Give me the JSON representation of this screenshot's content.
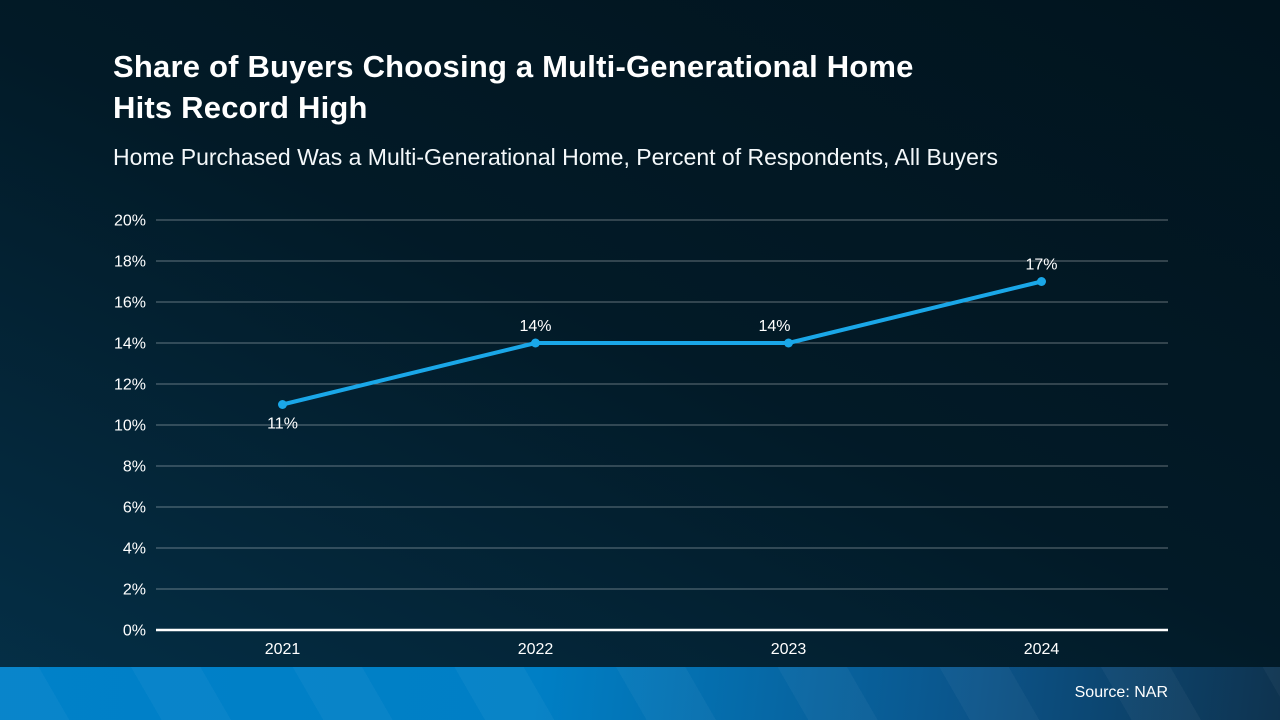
{
  "header": {
    "title_line1": "Share of Buyers Choosing a Multi-Generational Home",
    "title_line2": "Hits Record High",
    "subtitle": "Home Purchased Was a Multi-Generational Home, Percent of Respondents, All Buyers"
  },
  "footer": {
    "source": "Source: NAR"
  },
  "colors": {
    "accent_line": "#1aa7e8",
    "background_dark": "#01141e",
    "background_light": "#053048",
    "footer_gradient_left": "#0081c9",
    "footer_gradient_right": "#0e334f",
    "gridline": "rgba(255,255,255,0.38)",
    "axis_line": "#ffffff",
    "text": "#ffffff"
  },
  "chart_data": {
    "type": "line",
    "title": "Share of Buyers Choosing a Multi-Generational Home Hits Record High",
    "subtitle": "Home Purchased Was a Multi-Generational Home, Percent of Respondents, All Buyers",
    "categories": [
      "2021",
      "2022",
      "2023",
      "2024"
    ],
    "series": [
      {
        "name": "Home Purchased Was a Multi-Generational Home",
        "values": [
          11,
          14,
          14,
          17
        ],
        "data_labels": [
          "11%",
          "14%",
          "14%",
          "17%"
        ],
        "label_positions": [
          "below",
          "above",
          "above",
          "above"
        ],
        "label_x_offsets": [
          0,
          0,
          -14,
          0
        ]
      }
    ],
    "xlabel": "",
    "ylabel": "",
    "ylim": [
      0,
      20
    ],
    "ytick_step": 2,
    "ytick_labels": [
      "0%",
      "2%",
      "4%",
      "6%",
      "8%",
      "10%",
      "12%",
      "14%",
      "16%",
      "18%",
      "20%"
    ],
    "grid": true,
    "legend_position": "none",
    "marker": "circle"
  }
}
